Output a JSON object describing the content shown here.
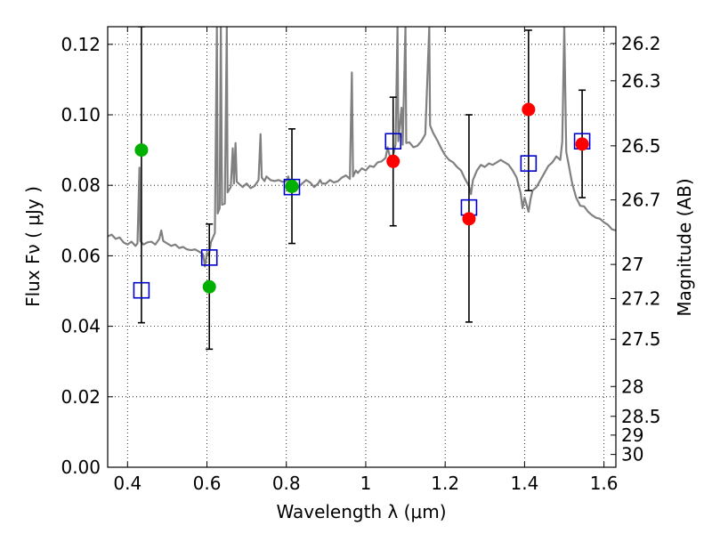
{
  "chart_data": {
    "type": "scatter",
    "xlabel": "Wavelength  λ (μm)",
    "ylabel": "Flux  Fν  ( μJy )",
    "y2label": "Magnitude (AB)",
    "xlim": [
      0.35,
      1.63
    ],
    "ylim": [
      0.0,
      0.125
    ],
    "xticks": [
      0.4,
      0.6,
      0.8,
      1.0,
      1.2,
      1.4,
      1.6
    ],
    "xtick_labels": [
      "0.4",
      "0.6",
      "0.8",
      "1",
      "1.2",
      "1.4",
      "1.6"
    ],
    "yticks": [
      0.0,
      0.02,
      0.04,
      0.06,
      0.08,
      0.1,
      0.12
    ],
    "ytick_labels": [
      "0.00",
      "0.02",
      "0.04",
      "0.06",
      "0.08",
      "0.10",
      "0.12"
    ],
    "y2ticks": [
      26.2,
      26.3,
      26.5,
      26.7,
      27,
      27.2,
      27.5,
      28,
      28.5,
      29,
      30
    ],
    "y2tick_labels": [
      "26.2",
      "26.3",
      "26.5",
      "26.7",
      "27",
      "27.2",
      "27.5",
      "28",
      "28.5",
      "29",
      "30"
    ],
    "grid": true,
    "colors": {
      "model": "#808080",
      "green": "#00b000",
      "red": "#ff0000",
      "square": "#0000cc",
      "errorbar": "#000000"
    },
    "observed_points": [
      {
        "x": 0.435,
        "y": 0.09,
        "yerr_low": 0.041,
        "yerr_high": 0.125,
        "color": "green"
      },
      {
        "x": 0.606,
        "y": 0.0512,
        "yerr_low": 0.0335,
        "yerr_high": 0.069,
        "color": "green"
      },
      {
        "x": 0.814,
        "y": 0.0797,
        "yerr_low": 0.0635,
        "yerr_high": 0.096,
        "color": "green"
      },
      {
        "x": 1.069,
        "y": 0.0868,
        "yerr_low": 0.0685,
        "yerr_high": 0.105,
        "color": "red"
      },
      {
        "x": 1.26,
        "y": 0.0705,
        "yerr_low": 0.0412,
        "yerr_high": 0.1,
        "color": "red"
      },
      {
        "x": 1.41,
        "y": 0.1015,
        "yerr_low": 0.0785,
        "yerr_high": 0.124,
        "color": "red"
      },
      {
        "x": 1.545,
        "y": 0.0917,
        "yerr_low": 0.0765,
        "yerr_high": 0.107,
        "color": "red"
      }
    ],
    "model_points": [
      {
        "x": 0.435,
        "y": 0.0502
      },
      {
        "x": 0.606,
        "y": 0.0595
      },
      {
        "x": 0.814,
        "y": 0.0795
      },
      {
        "x": 1.069,
        "y": 0.0925
      },
      {
        "x": 1.26,
        "y": 0.0737
      },
      {
        "x": 1.41,
        "y": 0.0862
      },
      {
        "x": 1.545,
        "y": 0.0925
      }
    ],
    "spectrum": [
      [
        0.35,
        0.0655
      ],
      [
        0.36,
        0.066
      ],
      [
        0.37,
        0.0648
      ],
      [
        0.38,
        0.0652
      ],
      [
        0.39,
        0.0638
      ],
      [
        0.4,
        0.0632
      ],
      [
        0.41,
        0.064
      ],
      [
        0.42,
        0.0628
      ],
      [
        0.425,
        0.0635
      ],
      [
        0.43,
        0.085
      ],
      [
        0.432,
        0.0642
      ],
      [
        0.44,
        0.0632
      ],
      [
        0.45,
        0.0638
      ],
      [
        0.46,
        0.064
      ],
      [
        0.47,
        0.0632
      ],
      [
        0.48,
        0.0648
      ],
      [
        0.485,
        0.0672
      ],
      [
        0.49,
        0.0642
      ],
      [
        0.5,
        0.0635
      ],
      [
        0.51,
        0.0628
      ],
      [
        0.52,
        0.0632
      ],
      [
        0.53,
        0.0622
      ],
      [
        0.54,
        0.0625
      ],
      [
        0.55,
        0.0618
      ],
      [
        0.56,
        0.0616
      ],
      [
        0.57,
        0.0618
      ],
      [
        0.58,
        0.0612
      ],
      [
        0.59,
        0.0605
      ],
      [
        0.595,
        0.057
      ],
      [
        0.6,
        0.0608
      ],
      [
        0.605,
        0.06
      ],
      [
        0.61,
        0.0638
      ],
      [
        0.62,
        0.0665
      ],
      [
        0.625,
        0.125
      ],
      [
        0.627,
        0.072
      ],
      [
        0.632,
        0.0735
      ],
      [
        0.635,
        0.125
      ],
      [
        0.638,
        0.0745
      ],
      [
        0.645,
        0.0748
      ],
      [
        0.65,
        0.125
      ],
      [
        0.652,
        0.078
      ],
      [
        0.66,
        0.0795
      ],
      [
        0.665,
        0.0905
      ],
      [
        0.668,
        0.0805
      ],
      [
        0.672,
        0.092
      ],
      [
        0.675,
        0.081
      ],
      [
        0.68,
        0.0805
      ],
      [
        0.69,
        0.0795
      ],
      [
        0.7,
        0.0805
      ],
      [
        0.71,
        0.0792
      ],
      [
        0.72,
        0.0798
      ],
      [
        0.73,
        0.0815
      ],
      [
        0.735,
        0.0945
      ],
      [
        0.738,
        0.0822
      ],
      [
        0.745,
        0.0812
      ],
      [
        0.75,
        0.0825
      ],
      [
        0.76,
        0.0815
      ],
      [
        0.77,
        0.0812
      ],
      [
        0.78,
        0.0815
      ],
      [
        0.79,
        0.081
      ],
      [
        0.8,
        0.0812
      ],
      [
        0.805,
        0.0825
      ],
      [
        0.81,
        0.0795
      ],
      [
        0.815,
        0.08
      ],
      [
        0.82,
        0.0805
      ],
      [
        0.825,
        0.0785
      ],
      [
        0.83,
        0.0795
      ],
      [
        0.84,
        0.0805
      ],
      [
        0.85,
        0.0815
      ],
      [
        0.86,
        0.0808
      ],
      [
        0.87,
        0.0795
      ],
      [
        0.88,
        0.0805
      ],
      [
        0.885,
        0.0815
      ],
      [
        0.89,
        0.0805
      ],
      [
        0.9,
        0.0805
      ],
      [
        0.91,
        0.0815
      ],
      [
        0.92,
        0.0808
      ],
      [
        0.93,
        0.0812
      ],
      [
        0.94,
        0.0822
      ],
      [
        0.95,
        0.0828
      ],
      [
        0.96,
        0.0818
      ],
      [
        0.965,
        0.112
      ],
      [
        0.968,
        0.0825
      ],
      [
        0.975,
        0.0842
      ],
      [
        0.98,
        0.0835
      ],
      [
        0.99,
        0.0848
      ],
      [
        1.0,
        0.0842
      ],
      [
        1.01,
        0.0855
      ],
      [
        1.02,
        0.0852
      ],
      [
        1.03,
        0.0865
      ],
      [
        1.04,
        0.0868
      ],
      [
        1.05,
        0.0878
      ],
      [
        1.055,
        0.0908
      ],
      [
        1.06,
        0.0885
      ],
      [
        1.065,
        0.087
      ],
      [
        1.07,
        0.089
      ],
      [
        1.075,
        0.0915
      ],
      [
        1.08,
        0.125
      ],
      [
        1.082,
        0.0925
      ],
      [
        1.09,
        0.102
      ],
      [
        1.093,
        0.0915
      ],
      [
        1.1,
        0.125
      ],
      [
        1.102,
        0.092
      ],
      [
        1.11,
        0.0922
      ],
      [
        1.12,
        0.0908
      ],
      [
        1.13,
        0.0912
      ],
      [
        1.14,
        0.0925
      ],
      [
        1.15,
        0.0945
      ],
      [
        1.16,
        0.125
      ],
      [
        1.162,
        0.097
      ],
      [
        1.17,
        0.0948
      ],
      [
        1.18,
        0.0928
      ],
      [
        1.19,
        0.0905
      ],
      [
        1.2,
        0.0885
      ],
      [
        1.21,
        0.0872
      ],
      [
        1.22,
        0.0865
      ],
      [
        1.23,
        0.0852
      ],
      [
        1.24,
        0.0842
      ],
      [
        1.25,
        0.0818
      ],
      [
        1.26,
        0.0798
      ],
      [
        1.265,
        0.0775
      ],
      [
        1.27,
        0.0815
      ],
      [
        1.28,
        0.0842
      ],
      [
        1.29,
        0.0858
      ],
      [
        1.3,
        0.0852
      ],
      [
        1.31,
        0.0862
      ],
      [
        1.32,
        0.0858
      ],
      [
        1.33,
        0.0865
      ],
      [
        1.34,
        0.0872
      ],
      [
        1.35,
        0.0865
      ],
      [
        1.36,
        0.0858
      ],
      [
        1.37,
        0.0842
      ],
      [
        1.38,
        0.0822
      ],
      [
        1.39,
        0.0778
      ],
      [
        1.395,
        0.0735
      ],
      [
        1.4,
        0.0765
      ],
      [
        1.405,
        0.0745
      ],
      [
        1.41,
        0.0725
      ],
      [
        1.415,
        0.076
      ],
      [
        1.42,
        0.0785
      ],
      [
        1.43,
        0.0795
      ],
      [
        1.44,
        0.0815
      ],
      [
        1.45,
        0.0835
      ],
      [
        1.46,
        0.0855
      ],
      [
        1.47,
        0.0865
      ],
      [
        1.48,
        0.0882
      ],
      [
        1.49,
        0.0872
      ],
      [
        1.495,
        0.0925
      ],
      [
        1.5,
        0.125
      ],
      [
        1.505,
        0.0895
      ],
      [
        1.51,
        0.0865
      ],
      [
        1.52,
        0.0805
      ],
      [
        1.53,
        0.0765
      ],
      [
        1.54,
        0.0742
      ],
      [
        1.55,
        0.074
      ],
      [
        1.56,
        0.0725
      ],
      [
        1.57,
        0.0715
      ],
      [
        1.58,
        0.0708
      ],
      [
        1.59,
        0.0705
      ],
      [
        1.6,
        0.0695
      ],
      [
        1.61,
        0.0688
      ],
      [
        1.62,
        0.0675
      ],
      [
        1.63,
        0.0672
      ]
    ]
  }
}
